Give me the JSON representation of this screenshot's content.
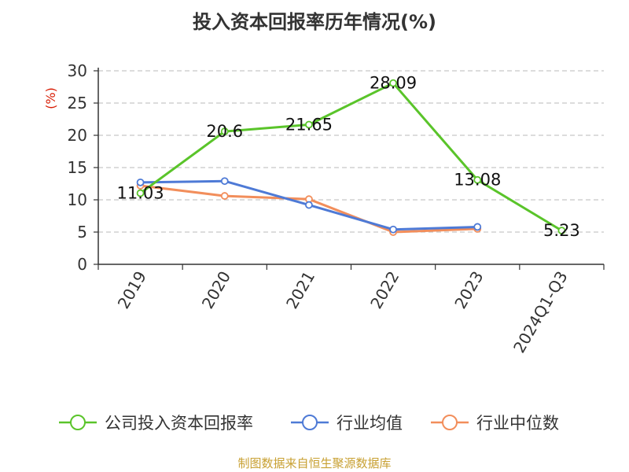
{
  "chart_data": {
    "type": "line",
    "title": "投入资本回报率历年情况(%)",
    "ylabel": "(%)",
    "xlabel": "",
    "categories": [
      "2019",
      "2020",
      "2021",
      "2022",
      "2023",
      "2024Q1-Q3"
    ],
    "ylim": [
      0,
      30
    ],
    "yticks": [
      0,
      5,
      10,
      15,
      20,
      25,
      30
    ],
    "grid": true,
    "legend_position": "bottom",
    "series": [
      {
        "name": "公司投入资本回报率",
        "color": "#5ac42a",
        "values": [
          11.03,
          20.6,
          21.65,
          28.09,
          13.08,
          5.23
        ],
        "labels": [
          "11.03",
          "20.6",
          "21.65",
          "28.09",
          "13.08",
          "5.23"
        ]
      },
      {
        "name": "行业均值",
        "color": "#4e7ad6",
        "values": [
          12.7,
          12.9,
          9.2,
          5.4,
          5.8,
          null
        ]
      },
      {
        "name": "行业中位数",
        "color": "#f28e5b",
        "values": [
          12.2,
          10.6,
          10.1,
          5.0,
          5.5,
          null
        ]
      }
    ]
  },
  "source_note": "制图数据来自恒生聚源数据库"
}
